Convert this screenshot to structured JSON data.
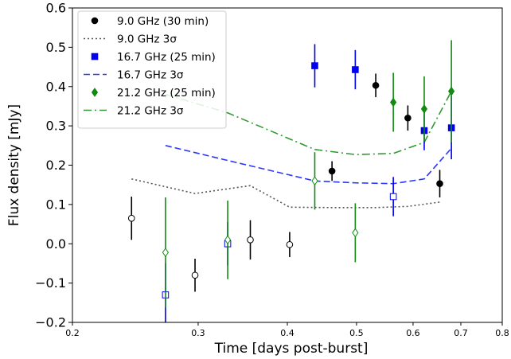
{
  "chart_data": {
    "type": "scatter",
    "xlabel": "Time [days post-burst]",
    "ylabel": "Flux density [mJy]",
    "xscale": "log",
    "xlim": [
      0.2,
      0.8
    ],
    "ylim": [
      -0.2,
      0.6
    ],
    "x_ticks": [
      {
        "value": 0.2,
        "label": "0.2"
      },
      {
        "value": 0.3,
        "label": "0.3"
      },
      {
        "value": 0.4,
        "label": "0.4"
      },
      {
        "value": 0.5,
        "label": "0.5"
      },
      {
        "value": 0.6,
        "label": "0.6"
      },
      {
        "value": 0.7,
        "label": "0.7"
      },
      {
        "value": 0.8,
        "label": "0.8"
      }
    ],
    "y_ticks": [
      {
        "value": -0.2,
        "label": "−0.2"
      },
      {
        "value": -0.1,
        "label": "−0.1"
      },
      {
        "value": 0.0,
        "label": "0.0"
      },
      {
        "value": 0.1,
        "label": "0.1"
      },
      {
        "value": 0.2,
        "label": "0.2"
      },
      {
        "value": 0.3,
        "label": "0.3"
      },
      {
        "value": 0.4,
        "label": "0.4"
      },
      {
        "value": 0.5,
        "label": "0.5"
      },
      {
        "value": 0.6,
        "label": "0.6"
      }
    ],
    "grid": false,
    "legend_position": "upper-left",
    "series": [
      {
        "name": "9.0 GHz (30 min)",
        "kind": "points",
        "marker": "circle",
        "color": "#000000",
        "points": [
          {
            "x": 0.242,
            "y": 0.065,
            "err": 0.055,
            "detected": false
          },
          {
            "x": 0.297,
            "y": -0.08,
            "err": 0.042,
            "detected": false
          },
          {
            "x": 0.355,
            "y": 0.01,
            "err": 0.05,
            "detected": false
          },
          {
            "x": 0.403,
            "y": -0.002,
            "err": 0.032,
            "detected": false
          },
          {
            "x": 0.462,
            "y": 0.185,
            "err": 0.025,
            "detected": true
          },
          {
            "x": 0.532,
            "y": 0.403,
            "err": 0.03,
            "detected": true
          },
          {
            "x": 0.59,
            "y": 0.32,
            "err": 0.032,
            "detected": true
          },
          {
            "x": 0.654,
            "y": 0.153,
            "err": 0.035,
            "detected": true
          }
        ]
      },
      {
        "name": "9.0 GHz 3σ",
        "kind": "line",
        "dash": "dotted",
        "color": "#555555",
        "x": [
          0.242,
          0.297,
          0.355,
          0.403,
          0.462,
          0.532,
          0.59,
          0.654
        ],
        "y": [
          0.165,
          0.128,
          0.148,
          0.093,
          0.092,
          0.092,
          0.095,
          0.106
        ]
      },
      {
        "name": "16.7 GHz (25 min)",
        "kind": "points",
        "marker": "square",
        "color": "#0000ee",
        "points": [
          {
            "x": 0.27,
            "y": -0.13,
            "err": 0.08,
            "detected": false
          },
          {
            "x": 0.33,
            "y": 0.0,
            "err": 0.055,
            "detected": false
          },
          {
            "x": 0.437,
            "y": 0.453,
            "err": 0.055,
            "detected": true
          },
          {
            "x": 0.498,
            "y": 0.443,
            "err": 0.05,
            "detected": true
          },
          {
            "x": 0.563,
            "y": 0.12,
            "err": 0.05,
            "detected": false
          },
          {
            "x": 0.622,
            "y": 0.288,
            "err": 0.05,
            "detected": true
          },
          {
            "x": 0.679,
            "y": 0.295,
            "err": 0.08,
            "detected": true
          }
        ]
      },
      {
        "name": "16.7 GHz 3σ",
        "kind": "line",
        "dash": "dashed",
        "color": "#2a35ff",
        "x": [
          0.27,
          0.33,
          0.437,
          0.498,
          0.563,
          0.622,
          0.679
        ],
        "y": [
          0.25,
          0.212,
          0.16,
          0.155,
          0.153,
          0.165,
          0.243
        ]
      },
      {
        "name": "21.2 GHz (25 min)",
        "kind": "points",
        "marker": "diamond",
        "color": "#138a13",
        "points": [
          {
            "x": 0.27,
            "y": -0.022,
            "err": 0.14,
            "detected": false
          },
          {
            "x": 0.33,
            "y": 0.01,
            "err": 0.1,
            "detected": false
          },
          {
            "x": 0.437,
            "y": 0.16,
            "err": 0.073,
            "detected": false
          },
          {
            "x": 0.498,
            "y": 0.028,
            "err": 0.075,
            "detected": false
          },
          {
            "x": 0.563,
            "y": 0.36,
            "err": 0.075,
            "detected": true
          },
          {
            "x": 0.622,
            "y": 0.343,
            "err": 0.083,
            "detected": true
          },
          {
            "x": 0.679,
            "y": 0.388,
            "err": 0.13,
            "detected": true
          }
        ]
      },
      {
        "name": "21.2 GHz 3σ",
        "kind": "line",
        "dash": "dashdot",
        "color": "#2e992e",
        "x": [
          0.27,
          0.33,
          0.437,
          0.498,
          0.563,
          0.622,
          0.679
        ],
        "y": [
          0.38,
          0.333,
          0.24,
          0.227,
          0.23,
          0.258,
          0.388
        ]
      }
    ]
  }
}
